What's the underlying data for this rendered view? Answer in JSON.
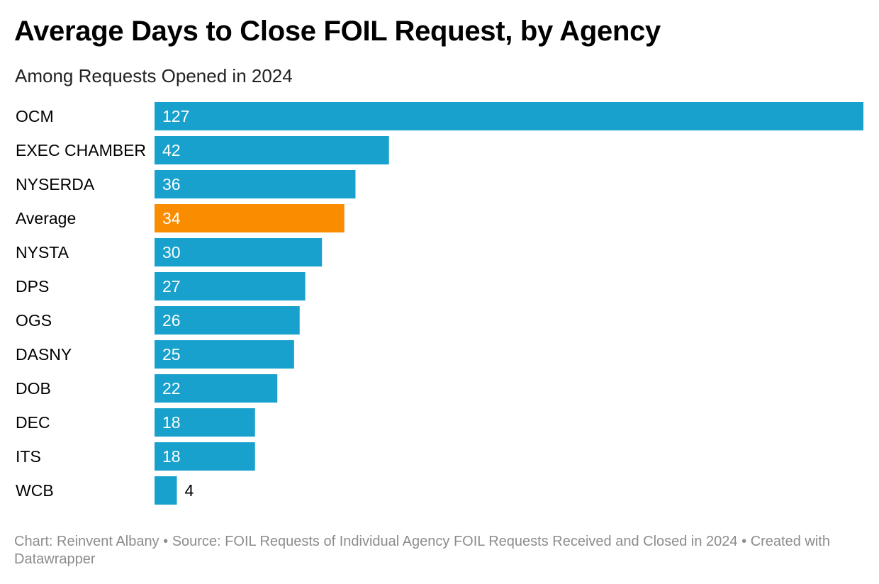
{
  "title": "Average Days to Close FOIL Request, by Agency",
  "subtitle": "Among Requests Opened in 2024",
  "footer": {
    "credit": "Chart: Reinvent Albany",
    "separator": " • ",
    "source": "Source: FOIL Requests of Individual Agency FOIL Requests Received and Closed in 2024",
    "tool": "Created with Datawrapper"
  },
  "chart_data": {
    "type": "bar",
    "orientation": "horizontal",
    "title": "Average Days to Close FOIL Request, by Agency",
    "subtitle": "Among Requests Opened in 2024",
    "xlabel": "",
    "ylabel": "",
    "xlim": [
      0,
      127
    ],
    "grid": false,
    "categories": [
      "OCM",
      "EXEC CHAMBER",
      "NYSERDA",
      "Average",
      "NYSTA",
      "DPS",
      "OGS",
      "DASNY",
      "DOB",
      "DEC",
      "ITS",
      "WCB"
    ],
    "values": [
      127,
      42,
      36,
      34,
      30,
      27,
      26,
      25,
      22,
      18,
      18,
      4
    ],
    "highlight": "Average",
    "colors": {
      "default": "#18a1cd",
      "highlight": "#fa8c00",
      "label_inside": "#ffffff",
      "label_outside": "#000000",
      "category_label": "#000000"
    }
  }
}
